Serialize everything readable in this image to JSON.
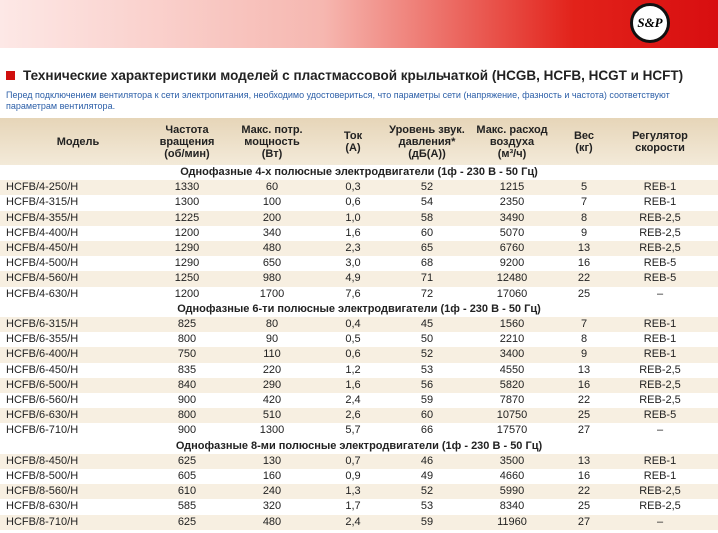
{
  "header": {
    "logo": "S&P"
  },
  "title": "Технические характеристики моделей с пластмассовой крыльчаткой (HCGB, HCFB, HCGT и HCFT)",
  "note": "Перед подключением вентилятора к сети электропитания, необходимо удостовериться, что параметры сети (напряжение, фазность и частота) соответствуют параметрам вентилятора.",
  "table": {
    "columns": [
      [
        "Модель"
      ],
      [
        "Частота",
        "вращения",
        "(об/мин)"
      ],
      [
        "Макс. потр.",
        "мощность",
        "(Вт)"
      ],
      [
        "Ток",
        "(А)"
      ],
      [
        "Уровень звук.",
        "давления*",
        "(дБ(А))"
      ],
      [
        "Макс. расход",
        "воздуха",
        "(м³/ч)"
      ],
      [
        "Вес",
        "(кг)"
      ],
      [
        "Регулятор",
        "скорости"
      ]
    ],
    "sections": [
      {
        "title": "Однофазные 4-х полюсные электродвигатели (1ф - 230 В - 50 Гц)",
        "rows": [
          [
            "HCFB/4-250/H",
            "1330",
            "60",
            "0,3",
            "52",
            "1215",
            "5",
            "REB-1"
          ],
          [
            "HCFB/4-315/H",
            "1300",
            "100",
            "0,6",
            "54",
            "2350",
            "7",
            "REB-1"
          ],
          [
            "HCFB/4-355/H",
            "1225",
            "200",
            "1,0",
            "58",
            "3490",
            "8",
            "REB-2,5"
          ],
          [
            "HCFB/4-400/H",
            "1200",
            "340",
            "1,6",
            "60",
            "5070",
            "9",
            "REB-2,5"
          ],
          [
            "HCFB/4-450/H",
            "1290",
            "480",
            "2,3",
            "65",
            "6760",
            "13",
            "REB-2,5"
          ],
          [
            "HCFB/4-500/H",
            "1290",
            "650",
            "3,0",
            "68",
            "9200",
            "16",
            "REB-5"
          ],
          [
            "HCFB/4-560/H",
            "1250",
            "980",
            "4,9",
            "71",
            "12480",
            "22",
            "REB-5"
          ],
          [
            "HCFB/4-630/H",
            "1200",
            "1700",
            "7,6",
            "72",
            "17060",
            "25",
            "–"
          ]
        ]
      },
      {
        "title": "Однофазные 6-ти полюсные электродвигатели (1ф - 230 В - 50 Гц)",
        "rows": [
          [
            "HCFB/6-315/H",
            "825",
            "80",
            "0,4",
            "45",
            "1560",
            "7",
            "REB-1"
          ],
          [
            "HCFB/6-355/H",
            "800",
            "90",
            "0,5",
            "50",
            "2210",
            "8",
            "REB-1"
          ],
          [
            "HCFB/6-400/H",
            "750",
            "110",
            "0,6",
            "52",
            "3400",
            "9",
            "REB-1"
          ],
          [
            "HCFB/6-450/H",
            "835",
            "220",
            "1,2",
            "53",
            "4550",
            "13",
            "REB-2,5"
          ],
          [
            "HCFB/6-500/H",
            "840",
            "290",
            "1,6",
            "56",
            "5820",
            "16",
            "REB-2,5"
          ],
          [
            "HCFB/6-560/H",
            "900",
            "420",
            "2,4",
            "59",
            "7870",
            "22",
            "REB-2,5"
          ],
          [
            "HCFB/6-630/H",
            "800",
            "510",
            "2,6",
            "60",
            "10750",
            "25",
            "REB-5"
          ],
          [
            "HCFB/6-710/H",
            "900",
            "1300",
            "5,7",
            "66",
            "17570",
            "27",
            "–"
          ]
        ]
      },
      {
        "title": "Однофазные 8-ми полюсные электродвигатели (1ф - 230 В - 50 Гц)",
        "rows": [
          [
            "HCFB/8-450/H",
            "625",
            "130",
            "0,7",
            "46",
            "3500",
            "13",
            "REB-1"
          ],
          [
            "HCFB/8-500/H",
            "605",
            "160",
            "0,9",
            "49",
            "4660",
            "16",
            "REB-1"
          ],
          [
            "HCFB/8-560/H",
            "610",
            "240",
            "1,3",
            "52",
            "5990",
            "22",
            "REB-2,5"
          ],
          [
            "HCFB/8-630/H",
            "585",
            "320",
            "1,7",
            "53",
            "8340",
            "25",
            "REB-2,5"
          ],
          [
            "HCFB/8-710/H",
            "625",
            "480",
            "2,4",
            "59",
            "11960",
            "27",
            "–"
          ]
        ]
      }
    ]
  }
}
